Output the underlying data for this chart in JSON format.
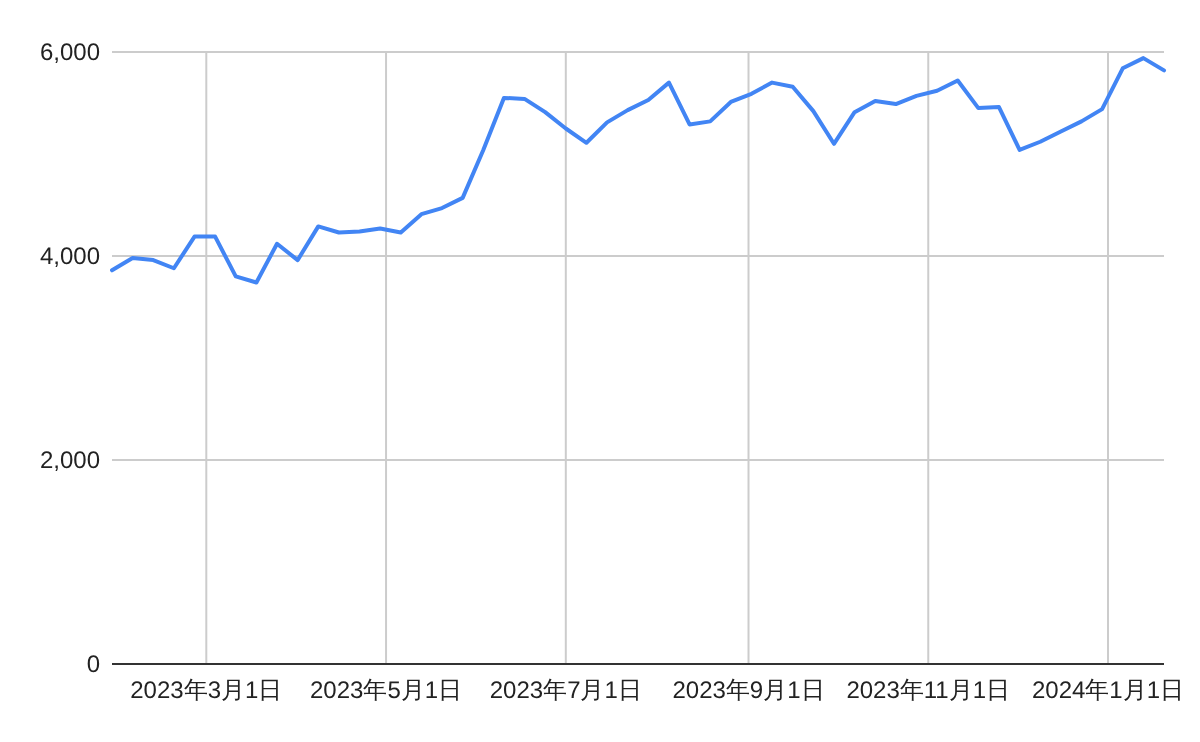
{
  "chart_data": {
    "type": "line",
    "x": [
      "2023-01-28",
      "2023-02-04",
      "2023-02-11",
      "2023-02-18",
      "2023-02-25",
      "2023-03-04",
      "2023-03-11",
      "2023-03-18",
      "2023-03-25",
      "2023-04-01",
      "2023-04-08",
      "2023-04-15",
      "2023-04-22",
      "2023-04-29",
      "2023-05-06",
      "2023-05-13",
      "2023-05-20",
      "2023-05-27",
      "2023-06-03",
      "2023-06-10",
      "2023-06-17",
      "2023-06-24",
      "2023-07-01",
      "2023-07-08",
      "2023-07-15",
      "2023-07-22",
      "2023-07-29",
      "2023-08-05",
      "2023-08-12",
      "2023-08-19",
      "2023-08-26",
      "2023-09-02",
      "2023-09-09",
      "2023-09-16",
      "2023-09-23",
      "2023-09-30",
      "2023-10-07",
      "2023-10-14",
      "2023-10-21",
      "2023-10-28",
      "2023-11-04",
      "2023-11-11",
      "2023-11-18",
      "2023-11-25",
      "2023-12-02",
      "2023-12-09",
      "2023-12-16",
      "2023-12-23",
      "2023-12-30",
      "2024-01-06",
      "2024-01-13",
      "2024-01-20"
    ],
    "series": [
      {
        "color": "#4285f4",
        "values": [
          3860,
          3980,
          3960,
          3880,
          4190,
          4190,
          3800,
          3740,
          4120,
          3960,
          4290,
          4230,
          4240,
          4270,
          4230,
          4410,
          4470,
          4570,
          5040,
          5550,
          5540,
          5410,
          5250,
          5110,
          5310,
          5430,
          5530,
          5700,
          5290,
          5320,
          5510,
          5590,
          5700,
          5660,
          5420,
          5100,
          5410,
          5520,
          5490,
          5570,
          5620,
          5720,
          5450,
          5460,
          5040,
          5120,
          5220,
          5320,
          5440,
          5840,
          5940,
          5820
        ]
      }
    ],
    "xlim": [
      "2023-01-28",
      "2024-01-20"
    ],
    "xticks": [
      {
        "value": "2023-03-01",
        "label": "2023年3月1日"
      },
      {
        "value": "2023-05-01",
        "label": "2023年5月1日"
      },
      {
        "value": "2023-07-01",
        "label": "2023年7月1日"
      },
      {
        "value": "2023-09-01",
        "label": "2023年9月1日"
      },
      {
        "value": "2023-11-01",
        "label": "2023年11月1日"
      },
      {
        "value": "2024-01-01",
        "label": "2024年1月1日"
      }
    ],
    "ylim": [
      0,
      6000
    ],
    "yticks": [
      0,
      {
        "value": 2000,
        "label": "2,000"
      },
      {
        "value": 4000,
        "label": "4,000"
      },
      {
        "value": 6000,
        "label": "6,000"
      }
    ],
    "grid": true,
    "marker": "none",
    "line_style": "solid"
  }
}
